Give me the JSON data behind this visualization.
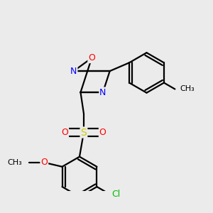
{
  "background_color": "#ebebeb",
  "bond_color": "#000000",
  "atom_colors": {
    "O": "#ff0000",
    "N": "#0000ff",
    "S": "#cccc00",
    "Cl": "#00bb00",
    "C": "#000000"
  },
  "font_size": 9,
  "linewidth": 1.6,
  "figsize": [
    3.0,
    3.0
  ],
  "dpi": 100
}
